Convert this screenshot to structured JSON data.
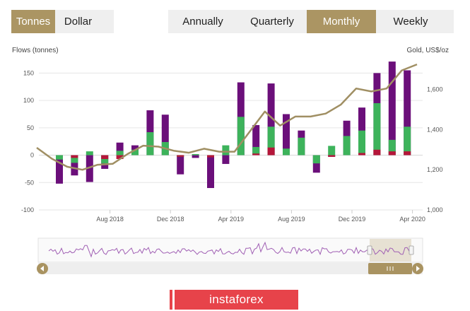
{
  "units": {
    "options": [
      {
        "label": "Tonnes",
        "active": true
      },
      {
        "label": "Dollar",
        "active": false
      }
    ]
  },
  "periods": {
    "options": [
      {
        "label": "Annually",
        "active": false
      },
      {
        "label": "Quarterly",
        "active": false
      },
      {
        "label": "Monthly",
        "active": true
      },
      {
        "label": "Weekly",
        "active": false
      }
    ]
  },
  "watermark": "instaforex",
  "colors": {
    "purple": "#6b0f7a",
    "green": "#3db35b",
    "red": "#b5163a",
    "gold": "#a08f63",
    "accent": "#ab9563"
  },
  "chart_data": {
    "type": "bar",
    "ylabel": "Flows (tonnes)",
    "y2label": "Gold, US$/oz",
    "ylim": [
      -100,
      175
    ],
    "y2lim": [
      1000,
      1750
    ],
    "yticks": [
      150,
      100,
      50,
      0,
      -50,
      -100
    ],
    "y2ticks": [
      1600,
      1400,
      1200,
      1000
    ],
    "xtick_labels": [
      {
        "label": "Aug 2018",
        "index": 4
      },
      {
        "label": "Dec 2018",
        "index": 8
      },
      {
        "label": "Apr 2019",
        "index": 12
      },
      {
        "label": "Aug 2019",
        "index": 16
      },
      {
        "label": "Dec 2019",
        "index": 20
      },
      {
        "label": "Apr 2020",
        "index": 24
      }
    ],
    "series": [
      {
        "kind": "total",
        "values": [
          -52,
          -37,
          -49,
          -25,
          23,
          18,
          82,
          74,
          -35,
          -5,
          -60,
          -16,
          133,
          55,
          131,
          75,
          45,
          -32,
          -3,
          63,
          87,
          150,
          171,
          155
        ]
      },
      {
        "kind": "green",
        "values": [
          -8,
          -14,
          7,
          -15,
          8,
          10,
          42,
          24,
          -3,
          2,
          -3,
          18,
          70,
          15,
          52,
          12,
          32,
          -15,
          17,
          35,
          45,
          95,
          28,
          52
        ]
      },
      {
        "kind": "red",
        "values": [
          0,
          -5,
          0,
          -7,
          -7,
          0,
          0,
          0,
          -3,
          0,
          -4,
          0,
          0,
          3,
          14,
          0,
          0,
          0,
          -3,
          0,
          4,
          10,
          7,
          7
        ]
      },
      {
        "kind": "gold",
        "values": [
          1310,
          1255,
          1215,
          1200,
          1225,
          1230,
          1280,
          1320,
          1315,
          1295,
          1285,
          1305,
          1290,
          1290,
          1390,
          1490,
          1420,
          1465,
          1465,
          1480,
          1525,
          1605,
          1590,
          1605,
          1695,
          1725
        ]
      }
    ]
  }
}
